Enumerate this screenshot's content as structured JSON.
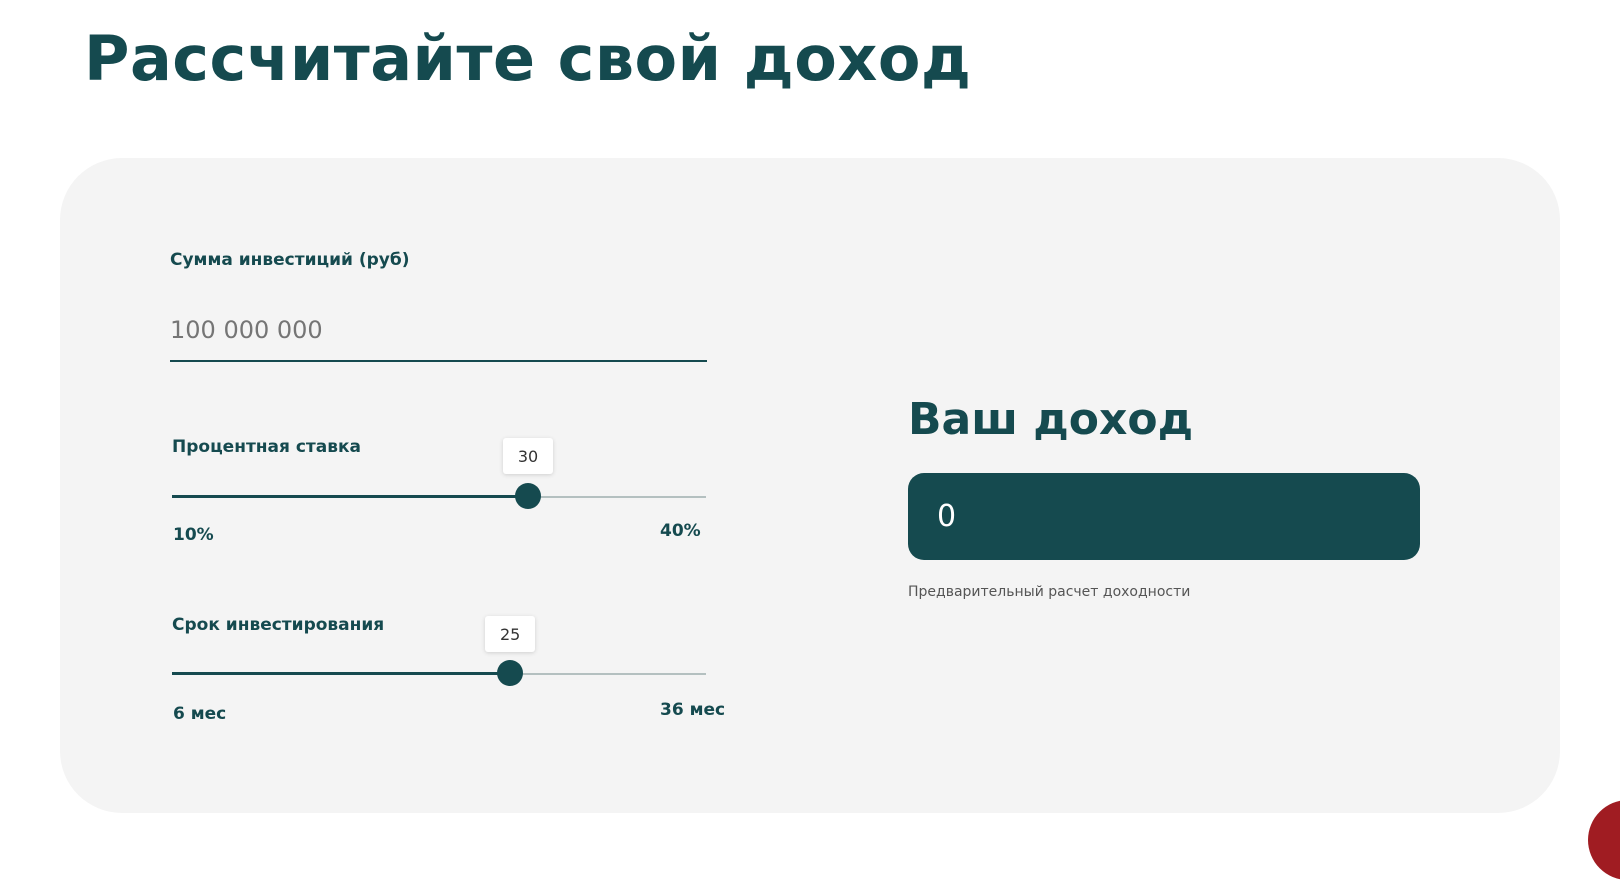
{
  "title": "Рассчитайте свой доход",
  "investment": {
    "label": "Сумма инвестиций (руб)",
    "placeholder": "100 000 000",
    "value": ""
  },
  "rate_slider": {
    "label": "Процентная ставка",
    "value": "30",
    "min": 10,
    "max": 40,
    "min_label": "10%",
    "max_label": "40%"
  },
  "term_slider": {
    "label": "Срок инвестирования",
    "value": "25",
    "min": 6,
    "max": 36,
    "min_label": "6 мес",
    "max_label": "36 мес"
  },
  "result": {
    "heading": "Ваш доход",
    "value": "0",
    "caption": "Предварительный расчет доходности"
  },
  "colors": {
    "accent": "#154a4f",
    "card": "#f4f4f4"
  }
}
